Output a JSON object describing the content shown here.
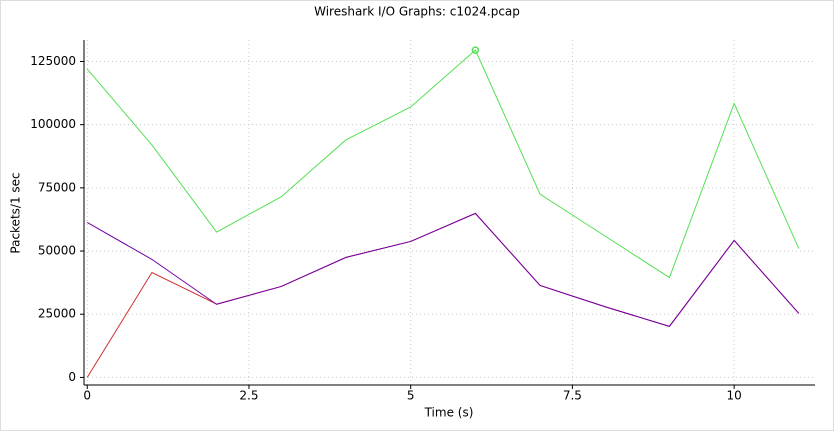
{
  "chart_data": {
    "type": "line",
    "title": "Wireshark I/O Graphs: c1024.pcap",
    "x_label": "Time (s)",
    "y_label": "Packets/1 sec",
    "x": [
      0,
      1,
      2,
      3,
      4,
      5,
      6,
      7,
      8,
      9,
      10,
      11
    ],
    "series": [
      {
        "color": "#d03030",
        "values": [
          0,
          41500,
          29000,
          36000,
          47500,
          53800,
          64900,
          36400,
          28000,
          20200,
          54200,
          25300
        ]
      },
      {
        "color": "#7000a8",
        "values": [
          61300,
          46700,
          28900,
          36000,
          47500,
          53800,
          64900,
          36400,
          28000,
          20200,
          54200,
          25300
        ]
      },
      {
        "color": "#55e055",
        "values": [
          122000,
          92000,
          57500,
          71500,
          94000,
          107000,
          129500,
          72500,
          56000,
          39500,
          108400,
          51000
        ],
        "marker": 6
      }
    ],
    "xlim": [
      -0.05,
      11.25
    ],
    "ylim": [
      -3000,
      133500
    ],
    "xticks": [
      0,
      2.5,
      5,
      7.5,
      10
    ],
    "yticks": [
      0,
      25000,
      50000,
      75000,
      100000,
      125000
    ],
    "grid": true
  }
}
